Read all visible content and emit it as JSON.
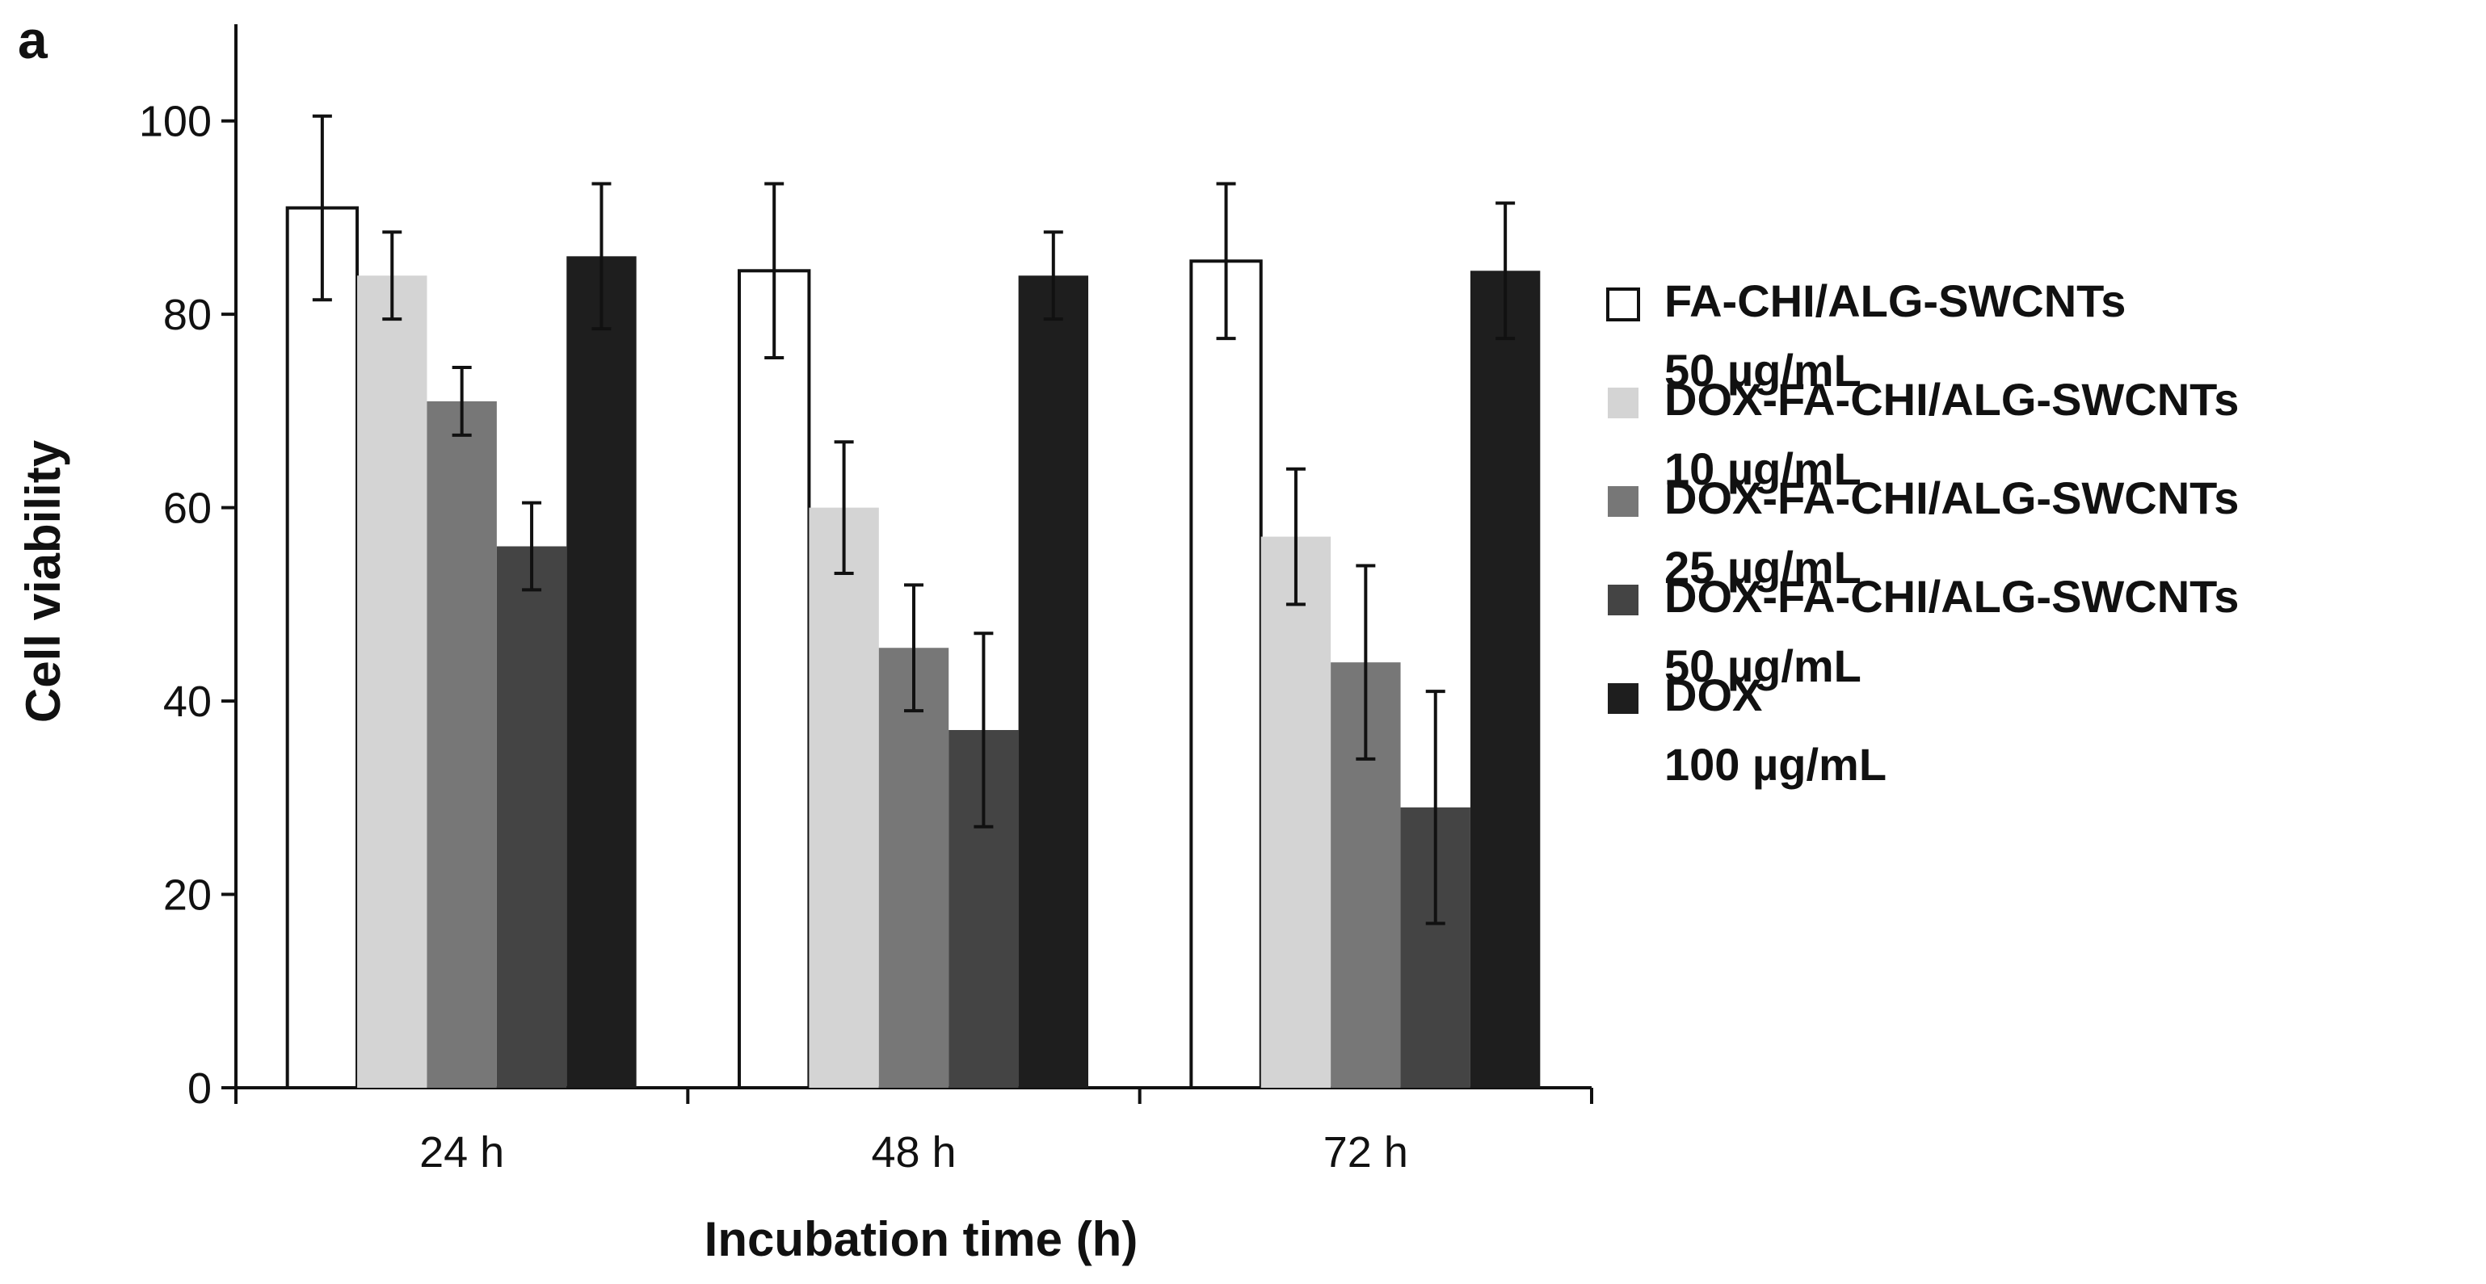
{
  "chart_data": {
    "type": "bar",
    "panel_label": "a",
    "xlabel": "Incubation time (h)",
    "ylabel": "Cell viability",
    "ylim": [
      0,
      110
    ],
    "yticks": [
      0,
      20,
      40,
      60,
      80,
      100
    ],
    "categories": [
      "24 h",
      "48 h",
      "72 h"
    ],
    "series": [
      {
        "name": "FA-CHI/ALG-SWCNTs",
        "conc": "50 µg/mL",
        "color": "#ffffff",
        "values": [
          91,
          84.5,
          85.5
        ],
        "errors": [
          9.5,
          9,
          8
        ]
      },
      {
        "name": "DOX-FA-CHI/ALG-SWCNTs",
        "conc": "10 µg/mL",
        "color": "#d4d4d4",
        "values": [
          84,
          60,
          57
        ],
        "errors": [
          4.5,
          6.8,
          7
        ]
      },
      {
        "name": "DOX-FA-CHI/ALG-SWCNTs",
        "conc": "25 µg/mL",
        "color": "#777777",
        "values": [
          71,
          45.5,
          44
        ],
        "errors": [
          3.5,
          6.5,
          10
        ]
      },
      {
        "name": "DOX-FA-CHI/ALG-SWCNTs",
        "conc": "50 µg/mL",
        "color": "#444444",
        "values": [
          56,
          37,
          29
        ],
        "errors": [
          4.5,
          10,
          12
        ]
      },
      {
        "name": "DOX",
        "conc": "100 µg/mL",
        "color": "#1e1e1e",
        "values": [
          86,
          84,
          84.5
        ],
        "errors": [
          7.5,
          4.5,
          7
        ]
      }
    ],
    "legend_position": "right"
  }
}
